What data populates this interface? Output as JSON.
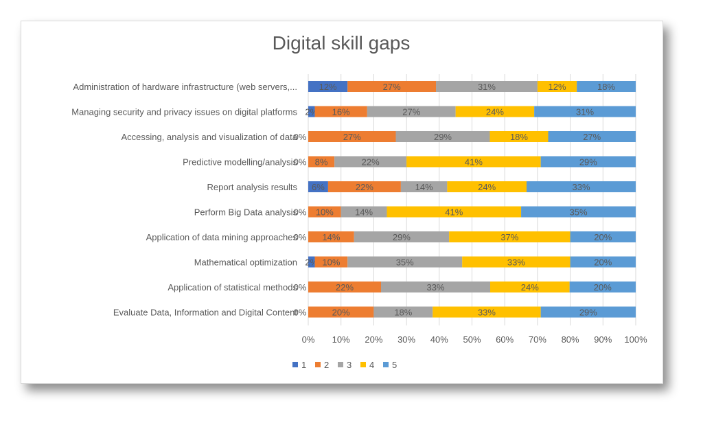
{
  "chart_data": {
    "type": "bar",
    "stacked": "percent",
    "orientation": "horizontal",
    "title": "Digital skill gaps",
    "categories": [
      "Administration of hardware infrastructure (web servers,...",
      "Managing security and privacy issues on digital platforms",
      "Accessing, analysis and visualization of data",
      "Predictive modelling/analysis",
      "Report analysis results",
      "Perform Big Data analysis",
      "Application of data mining approaches",
      "Mathematical optimization",
      "Application of statistical methods",
      "Evaluate Data, Information and Digital Content"
    ],
    "series": [
      {
        "name": "1",
        "color": "#4472c4",
        "values": [
          12,
          2,
          0,
          0,
          6,
          0,
          0,
          2,
          0,
          0
        ]
      },
      {
        "name": "2",
        "color": "#ed7d31",
        "values": [
          27,
          16,
          27,
          8,
          22,
          10,
          14,
          10,
          22,
          20
        ]
      },
      {
        "name": "3",
        "color": "#a5a5a5",
        "values": [
          31,
          27,
          29,
          22,
          14,
          14,
          29,
          35,
          33,
          18
        ]
      },
      {
        "name": "4",
        "color": "#ffc000",
        "values": [
          12,
          24,
          18,
          41,
          24,
          41,
          37,
          33,
          24,
          33
        ]
      },
      {
        "name": "5",
        "color": "#5b9bd5",
        "values": [
          18,
          31,
          27,
          29,
          33,
          35,
          20,
          20,
          20,
          29
        ]
      }
    ],
    "xticks": [
      "0%",
      "10%",
      "20%",
      "30%",
      "40%",
      "50%",
      "60%",
      "70%",
      "80%",
      "90%",
      "100%"
    ],
    "xlim": [
      0,
      100
    ],
    "grid": true,
    "legend": "bottom"
  }
}
